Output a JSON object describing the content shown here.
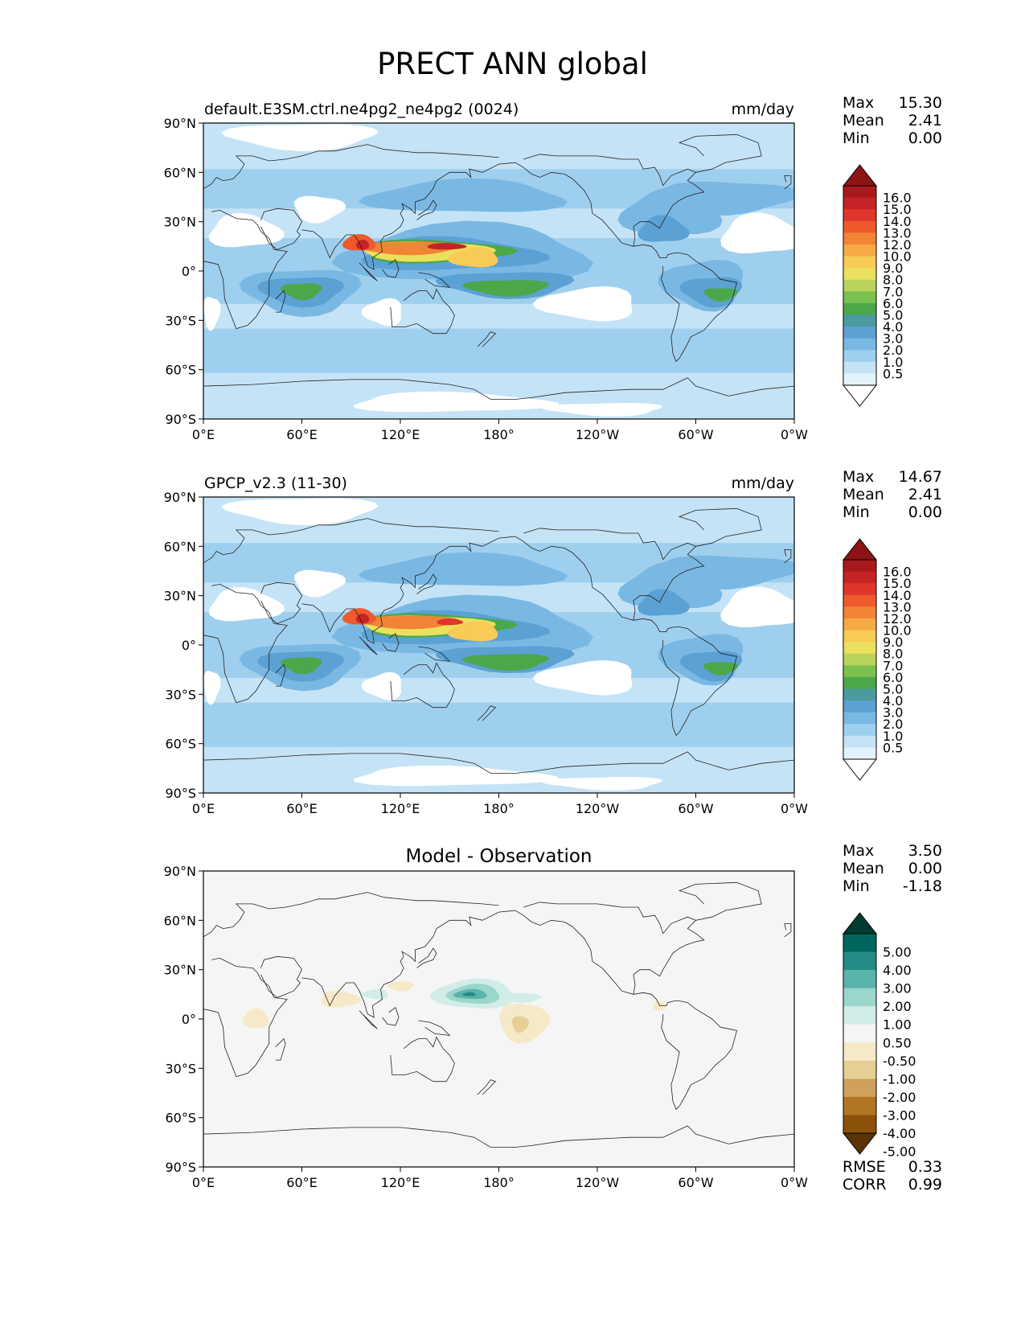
{
  "page": {
    "title": "PRECT ANN global"
  },
  "axes": {
    "lat_ticks": [
      "90°N",
      "60°N",
      "30°N",
      "0°",
      "30°S",
      "60°S",
      "90°S"
    ],
    "lon_ticks": [
      "0°E",
      "60°E",
      "120°E",
      "180°",
      "120°W",
      "60°W",
      "0°W"
    ]
  },
  "panels": [
    {
      "id": "model",
      "title_left": "default.E3SM.ctrl.ne4pg2_ne4pg2 (0024)",
      "title_center": "",
      "units": "mm/day",
      "stats": [
        {
          "label": "Max",
          "value": "15.30"
        },
        {
          "label": "Mean",
          "value": "2.41"
        },
        {
          "label": "Min",
          "value": "0.00"
        }
      ],
      "colorbar": {
        "labels": [
          "16.0",
          "15.0",
          "14.0",
          "13.0",
          "12.0",
          "10.0",
          "9.0",
          "8.0",
          "7.0",
          "6.0",
          "5.0",
          "4.0",
          "3.0",
          "2.0",
          "1.0",
          "0.5"
        ],
        "colors": [
          "#8c1414",
          "#a8191c",
          "#c62326",
          "#e0352a",
          "#ee5a2c",
          "#f28435",
          "#f6aa45",
          "#f7cb56",
          "#eae05e",
          "#b8d35c",
          "#7cc04f",
          "#4ba84a",
          "#4a9aa0",
          "#5ba1d4",
          "#7ab8e4",
          "#9fcfee",
          "#c4e3f6",
          "#e4f3fb",
          "#ffffff"
        ]
      }
    },
    {
      "id": "obs",
      "title_left": "GPCP_v2.3 (11-30)",
      "title_center": "",
      "units": "mm/day",
      "stats": [
        {
          "label": "Max",
          "value": "14.67"
        },
        {
          "label": "Mean",
          "value": "2.41"
        },
        {
          "label": "Min",
          "value": "0.00"
        }
      ],
      "colorbar": {
        "labels": [
          "16.0",
          "15.0",
          "14.0",
          "13.0",
          "12.0",
          "10.0",
          "9.0",
          "8.0",
          "7.0",
          "6.0",
          "5.0",
          "4.0",
          "3.0",
          "2.0",
          "1.0",
          "0.5"
        ],
        "colors": [
          "#8c1414",
          "#a8191c",
          "#c62326",
          "#e0352a",
          "#ee5a2c",
          "#f28435",
          "#f6aa45",
          "#f7cb56",
          "#eae05e",
          "#b8d35c",
          "#7cc04f",
          "#4ba84a",
          "#4a9aa0",
          "#5ba1d4",
          "#7ab8e4",
          "#9fcfee",
          "#c4e3f6",
          "#e4f3fb",
          "#ffffff"
        ]
      }
    },
    {
      "id": "diff",
      "title_left": "",
      "title_center": "Model - Observation",
      "units": "",
      "stats": [
        {
          "label": "Max",
          "value": "3.50"
        },
        {
          "label": "Mean",
          "value": "0.00"
        },
        {
          "label": "Min",
          "value": "-1.18"
        }
      ],
      "colorbar": {
        "labels": [
          "5.00",
          "4.00",
          "3.00",
          "2.00",
          "1.00",
          "0.50",
          "-0.50",
          "-1.00",
          "-2.00",
          "-3.00",
          "-4.00",
          "-5.00"
        ],
        "colors": [
          "#003c30",
          "#01665e",
          "#248c84",
          "#5ab4ac",
          "#9bd6cb",
          "#d2ece8",
          "#f5f5f5",
          "#f5e9c8",
          "#e6cf94",
          "#cfa15a",
          "#b27525",
          "#8c5109",
          "#5a3406"
        ]
      },
      "metrics": [
        {
          "label": "RMSE",
          "value": "0.33"
        },
        {
          "label": "CORR",
          "value": "0.99"
        }
      ]
    }
  ],
  "chart_data": {
    "type": "heatmap",
    "title": "PRECT ANN global",
    "projection": "plate carree, centered at 180°",
    "xlim": [
      0,
      360
    ],
    "ylim": [
      -90,
      90
    ],
    "grid": false,
    "panels": [
      {
        "name": "default.E3SM.ctrl.ne4pg2_ne4pg2 (0024)",
        "units": "mm/day",
        "max": 15.3,
        "mean": 2.41,
        "min": 0.0,
        "levels": [
          0.5,
          1.0,
          2.0,
          3.0,
          4.0,
          5.0,
          6.0,
          7.0,
          8.0,
          9.0,
          10.0,
          12.0,
          13.0,
          14.0,
          15.0,
          16.0
        ]
      },
      {
        "name": "GPCP_v2.3 (11-30)",
        "units": "mm/day",
        "max": 14.67,
        "mean": 2.41,
        "min": 0.0,
        "levels": [
          0.5,
          1.0,
          2.0,
          3.0,
          4.0,
          5.0,
          6.0,
          7.0,
          8.0,
          9.0,
          10.0,
          12.0,
          13.0,
          14.0,
          15.0,
          16.0
        ]
      },
      {
        "name": "Model - Observation",
        "units": "",
        "max": 3.5,
        "mean": 0.0,
        "min": -1.18,
        "rmse": 0.33,
        "corr": 0.99,
        "levels": [
          -5.0,
          -4.0,
          -3.0,
          -2.0,
          -1.0,
          -0.5,
          0.5,
          1.0,
          2.0,
          3.0,
          4.0,
          5.0
        ]
      }
    ]
  }
}
